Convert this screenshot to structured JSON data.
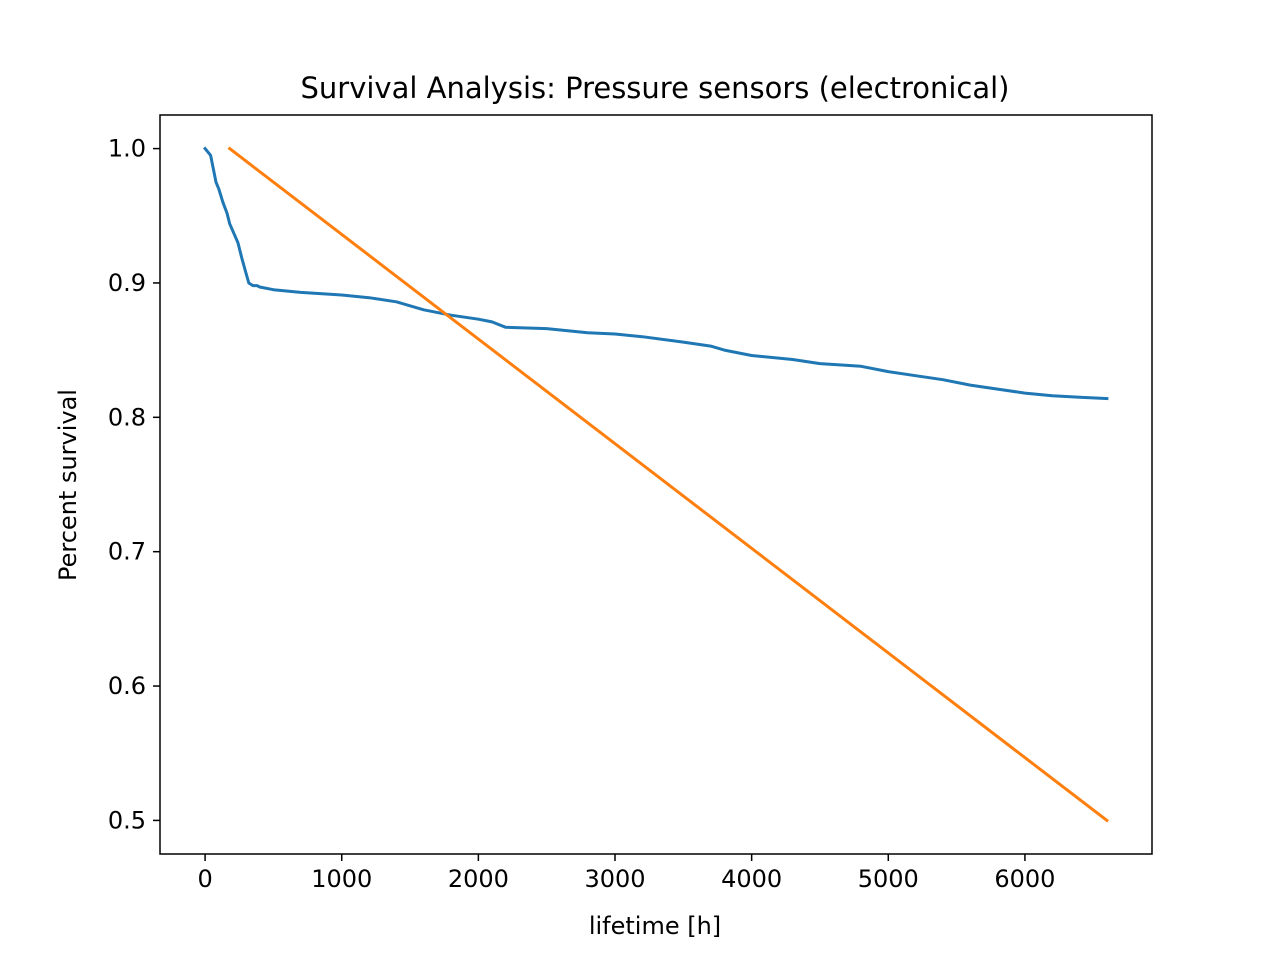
{
  "chart_data": {
    "type": "line",
    "title": "Survival Analysis: Pressure sensors (electronical)",
    "xlabel": "lifetime [h]",
    "ylabel": "Percent survival",
    "xlim": [
      -330,
      6930
    ],
    "ylim": [
      0.475,
      1.025
    ],
    "xticks": [
      0,
      1000,
      2000,
      3000,
      4000,
      5000,
      6000
    ],
    "xtick_labels": [
      "0",
      "1000",
      "2000",
      "3000",
      "4000",
      "5000",
      "6000"
    ],
    "yticks": [
      0.5,
      0.6,
      0.7,
      0.8,
      0.9,
      1.0
    ],
    "ytick_labels": [
      "0.5",
      "0.6",
      "0.7",
      "0.8",
      "0.9",
      "1.0"
    ],
    "grid": false,
    "legend": "none",
    "series": [
      {
        "color": "#1f77b4",
        "x": [
          0,
          40,
          60,
          80,
          100,
          130,
          160,
          180,
          210,
          240,
          270,
          300,
          320,
          350,
          380,
          400,
          500,
          700,
          1000,
          1200,
          1400,
          1500,
          1600,
          1800,
          2000,
          2100,
          2200,
          2500,
          2800,
          3000,
          3200,
          3500,
          3700,
          3800,
          4000,
          4300,
          4500,
          4800,
          5000,
          5200,
          5400,
          5600,
          5800,
          6000,
          6200,
          6400,
          6600
        ],
        "y": [
          1.0,
          0.995,
          0.985,
          0.975,
          0.97,
          0.96,
          0.952,
          0.944,
          0.937,
          0.93,
          0.918,
          0.907,
          0.9,
          0.898,
          0.898,
          0.897,
          0.895,
          0.893,
          0.891,
          0.889,
          0.886,
          0.883,
          0.88,
          0.876,
          0.873,
          0.871,
          0.867,
          0.866,
          0.863,
          0.862,
          0.86,
          0.856,
          0.853,
          0.85,
          0.846,
          0.843,
          0.84,
          0.838,
          0.834,
          0.831,
          0.828,
          0.824,
          0.821,
          0.818,
          0.816,
          0.815,
          0.814
        ]
      },
      {
        "color": "#ff7f0e",
        "x": [
          180,
          6600
        ],
        "y": [
          1.0,
          0.5
        ]
      }
    ]
  }
}
